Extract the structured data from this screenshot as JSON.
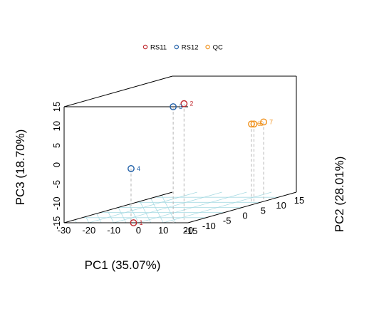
{
  "chart_data": {
    "type": "scatter",
    "title": "",
    "xlabel": "PC1 (35.07%)",
    "ylabel": "PC2 (28.01%)",
    "zlabel": "PC3 (18.70%)",
    "xlim": [
      -30,
      20
    ],
    "ylim": [
      -15,
      15
    ],
    "zlim": [
      -15,
      15
    ],
    "x_ticks": [
      "-30",
      "-20",
      "-10",
      "0",
      "10",
      "20"
    ],
    "y_ticks": [
      "-15",
      "-10",
      "-5",
      "0",
      "5",
      "10",
      "15"
    ],
    "z_ticks": [
      "-15",
      "-10",
      "-5",
      "0",
      "5",
      "10",
      "15"
    ],
    "legend_position": "top",
    "series": [
      {
        "name": "RS11",
        "color": "#c0282d",
        "points": [
          {
            "label": "1",
            "x": -2,
            "y": -15,
            "z": -15
          },
          {
            "label": "2",
            "x": 14,
            "y": -12,
            "z": 15
          }
        ]
      },
      {
        "name": "RS12",
        "color": "#1f5fa8",
        "points": [
          {
            "label": "3",
            "x": 14,
            "y": -15,
            "z": 15
          },
          {
            "label": "4",
            "x": -3,
            "y": -15,
            "z": -1
          }
        ]
      },
      {
        "name": "QC",
        "color": "#f0921e",
        "points": [
          {
            "label": "5",
            "x": 16,
            "y": 6,
            "z": 5
          },
          {
            "label": "6",
            "x": 15,
            "y": 6,
            "z": 5
          },
          {
            "label": "7",
            "x": 17,
            "y": 8,
            "z": 5
          }
        ]
      }
    ]
  }
}
